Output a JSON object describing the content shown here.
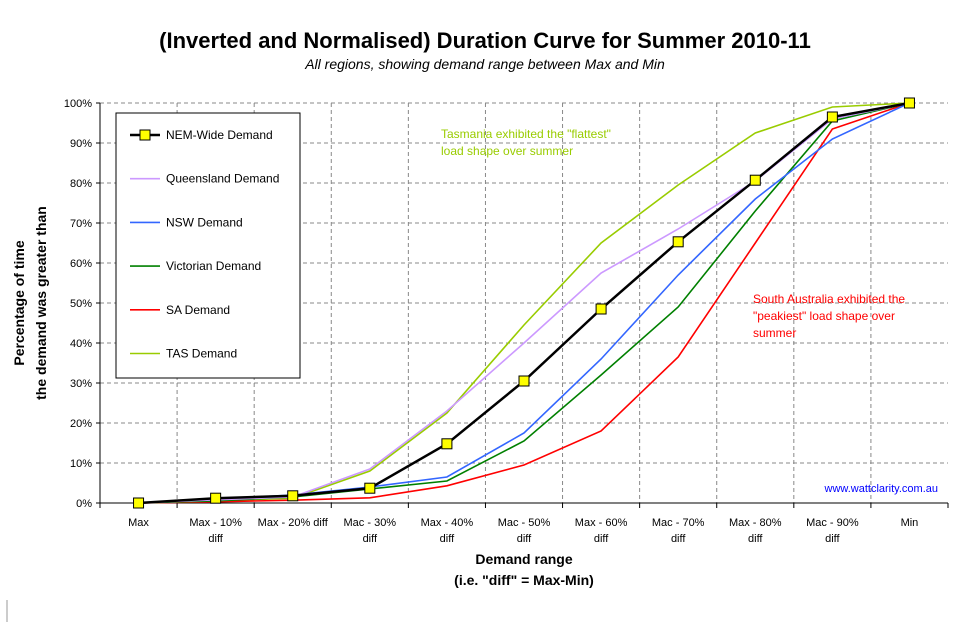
{
  "chart_data": {
    "type": "line",
    "title": "(Inverted and Normalised) Duration Curve for Summer 2010-11",
    "subtitle": "All regions, showing demand range between Max and Min",
    "xlabel": [
      "Demand range",
      "(i.e. \"diff\" = Max-Min)"
    ],
    "ylabel": [
      "Percentage of time",
      "the demand was greater than"
    ],
    "categories": [
      [
        "Max"
      ],
      [
        "Max - 10%",
        "diff"
      ],
      [
        "Max - 20% diff"
      ],
      [
        "Mac - 30%",
        "diff"
      ],
      [
        "Max - 40%",
        "diff"
      ],
      [
        "Mac - 50%",
        "diff"
      ],
      [
        "Max - 60%",
        "diff"
      ],
      [
        "Mac - 70%",
        "diff"
      ],
      [
        "Max - 80%",
        "diff"
      ],
      [
        "Mac - 90%",
        "diff"
      ],
      [
        "Min"
      ]
    ],
    "ylim": [
      0,
      100
    ],
    "yticks": [
      "0%",
      "10%",
      "20%",
      "30%",
      "40%",
      "50%",
      "60%",
      "70%",
      "80%",
      "90%",
      "100%"
    ],
    "grid": true,
    "legend_placement": "top-left",
    "series": [
      {
        "name": "NEM-Wide Demand",
        "color": "#000000",
        "marker": "square-yellow",
        "values": [
          0,
          1.2,
          1.8,
          3.7,
          14.8,
          30.5,
          48.5,
          65.3,
          80.7,
          96.5,
          100
        ]
      },
      {
        "name": "Queensland Demand",
        "color": "#cc99ff",
        "values": [
          0,
          0.8,
          1.5,
          8.5,
          23,
          40,
          57.5,
          68.5,
          80.5,
          96,
          100
        ]
      },
      {
        "name": "NSW Demand",
        "color": "#3366ff",
        "values": [
          0,
          1,
          2,
          4,
          6.5,
          17.5,
          36,
          57,
          76,
          91,
          100
        ]
      },
      {
        "name": "Victorian Demand",
        "color": "#008000",
        "values": [
          0,
          0.5,
          1.5,
          3.5,
          5.5,
          15.5,
          32,
          49,
          73,
          95.5,
          100
        ]
      },
      {
        "name": "SA Demand",
        "color": "#ff0000",
        "values": [
          0,
          0.3,
          0.7,
          1.3,
          4.3,
          9.5,
          18,
          36.5,
          65,
          93.5,
          100
        ]
      },
      {
        "name": "TAS Demand",
        "color": "#99cc00",
        "values": [
          0,
          0.5,
          1.2,
          8,
          22.5,
          44.5,
          65,
          79.5,
          92.5,
          99,
          100
        ]
      }
    ],
    "annotations": [
      {
        "text": [
          "Tasmania exhibited the \"flattest\"",
          "load shape over summer"
        ],
        "color": "#99cc00"
      },
      {
        "text": [
          "South Australia exhibited the",
          "\"peakiest\" load shape over",
          "summer"
        ],
        "color": "#ff0000"
      }
    ],
    "watermark": {
      "text": "www.wattclarity.com.au",
      "color": "#0000ff"
    }
  }
}
